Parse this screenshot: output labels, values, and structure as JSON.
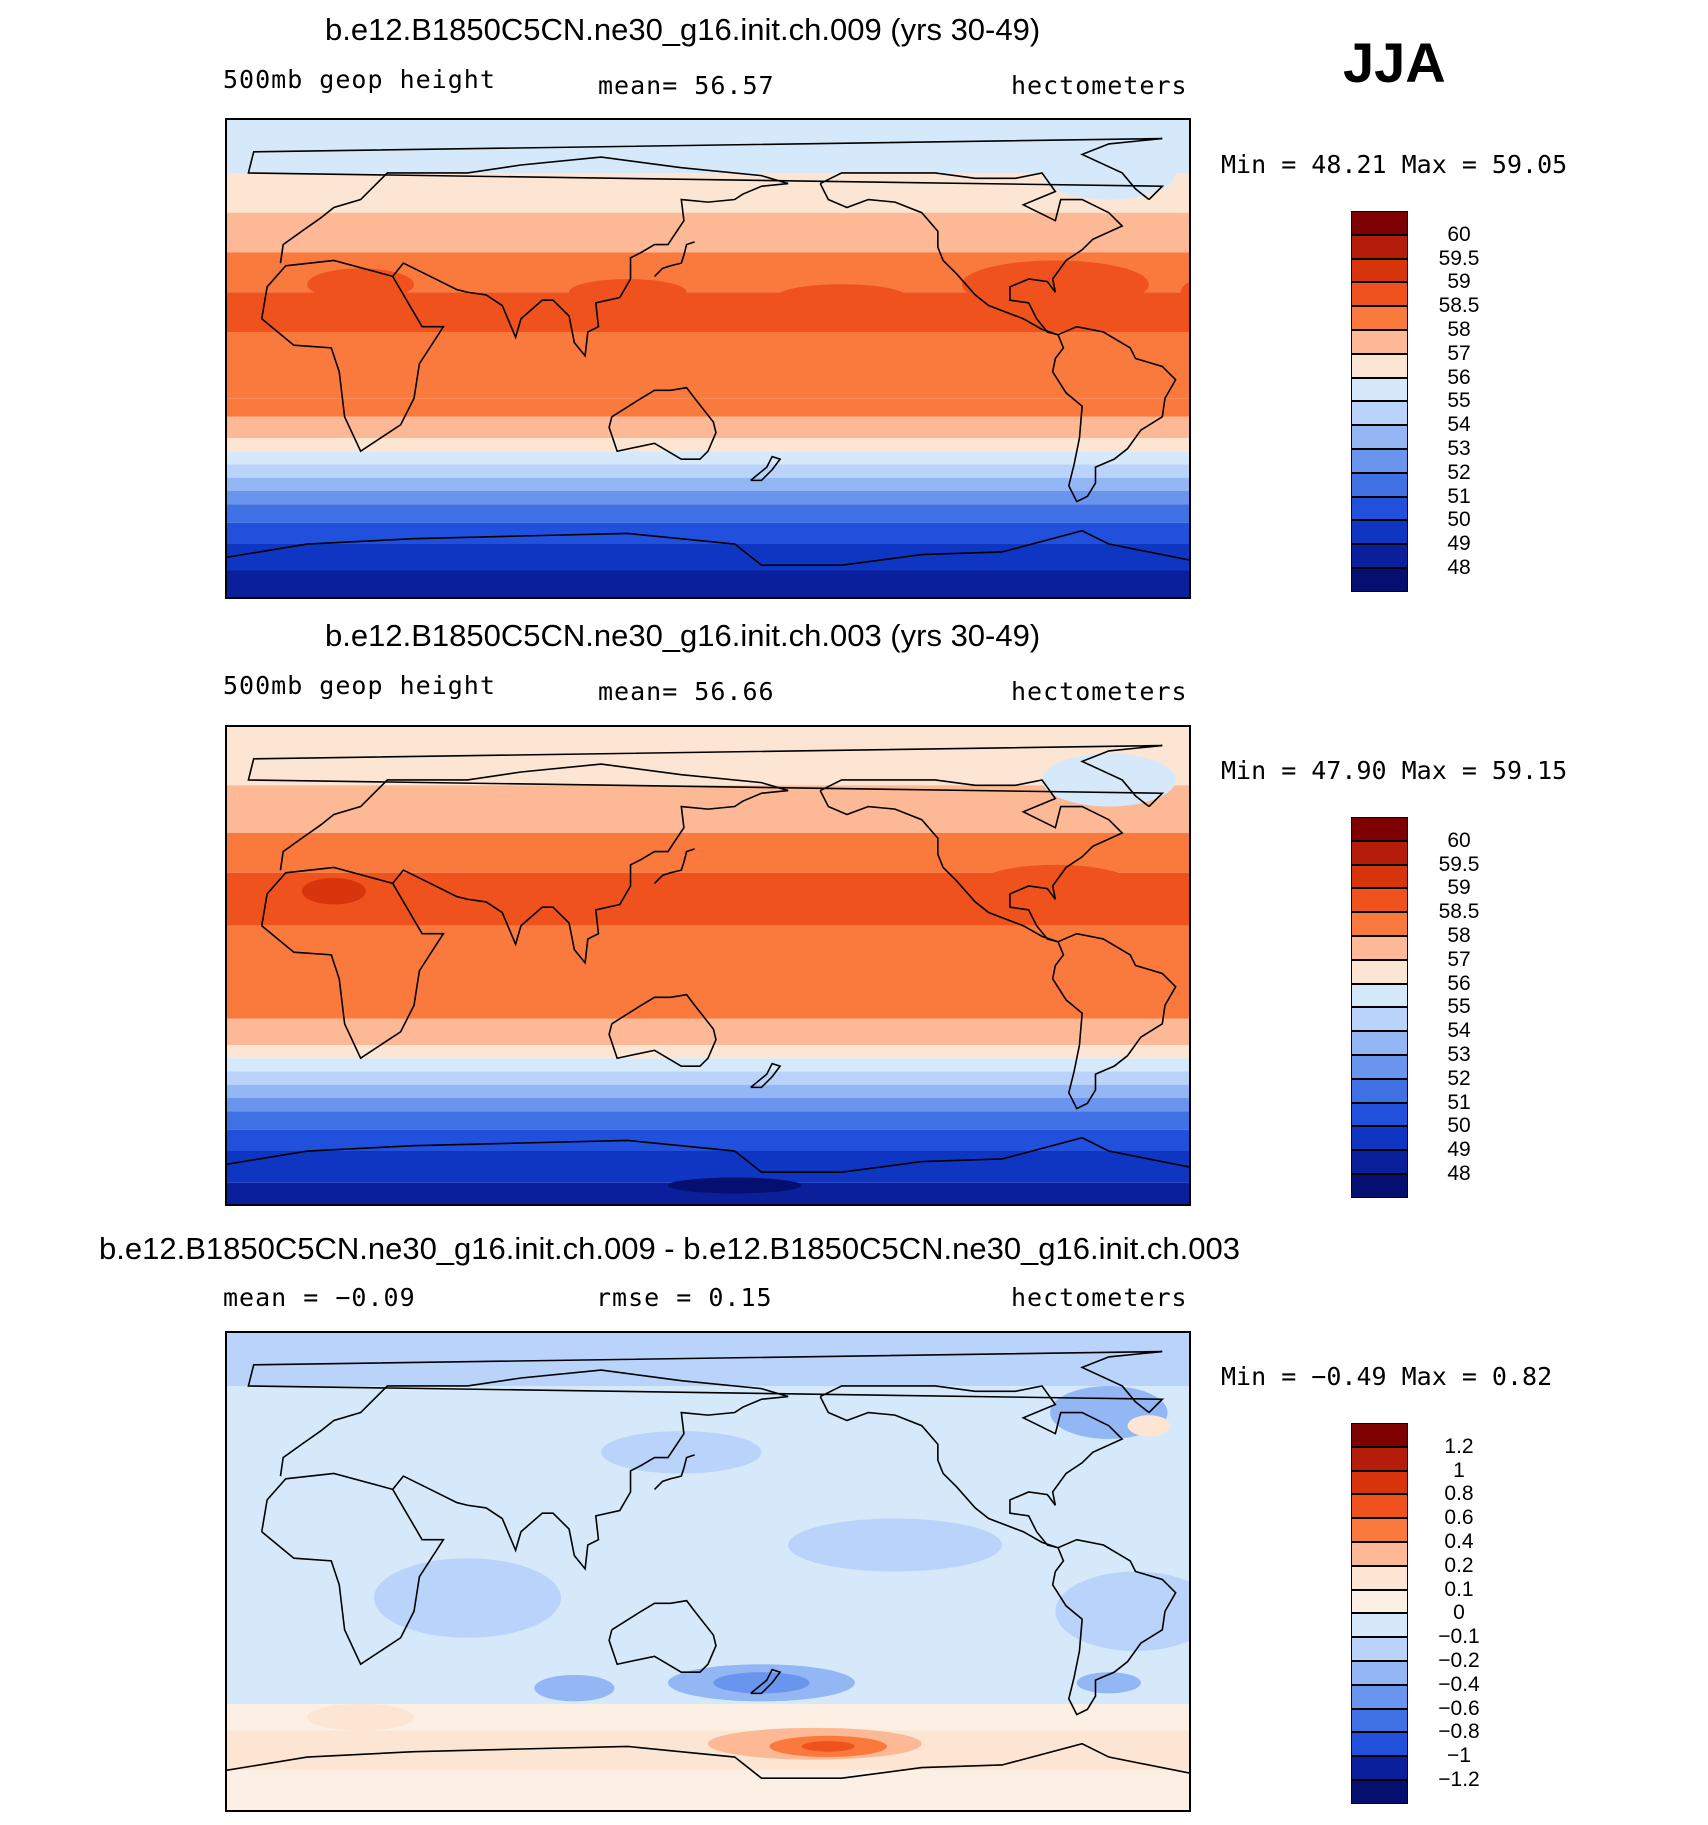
{
  "season": "JJA",
  "panels": [
    {
      "title": "b.e12.B1850C5CN.ne30_g16.init.ch.009 (yrs 30-49)",
      "field": "500mb  geop  height",
      "stat": "mean=   56.57",
      "units": "hectometers",
      "minmax": "Min  =   48.21  Max  =   59.05",
      "colorbar": {
        "labels": [
          "60",
          "59.5",
          "59",
          "58.5",
          "58",
          "57",
          "56",
          "55",
          "54",
          "53",
          "52",
          "51",
          "50",
          "49",
          "48"
        ],
        "colors": [
          "#7f0000",
          "#b51d0a",
          "#d8350d",
          "#f0521d",
          "#fa7a3e",
          "#fdb896",
          "#fce5d2",
          "#d6e9fa",
          "#b9d3fa",
          "#93b6f5",
          "#6a95ef",
          "#3f70e4",
          "#2050dc",
          "#0f36c2",
          "#0a1f9c",
          "#050f70"
        ]
      },
      "bands": [
        {
          "lat": 82,
          "color": "#d6e9fa"
        },
        {
          "lat": 70,
          "color": "#fce5d2"
        },
        {
          "lat": 55,
          "color": "#fdb896"
        },
        {
          "lat": 40,
          "color": "#fa7a3e"
        },
        {
          "lat": 25,
          "color": "#f0521d"
        },
        {
          "lat": 10,
          "color": "#fa7a3e"
        },
        {
          "lat": -15,
          "color": "#fa7a3e"
        },
        {
          "lat": -22,
          "color": "#fdb896"
        },
        {
          "lat": -30,
          "color": "#fce5d2"
        },
        {
          "lat": -35,
          "color": "#d6e9fa"
        },
        {
          "lat": -40,
          "color": "#b9d3fa"
        },
        {
          "lat": -45,
          "color": "#93b6f5"
        },
        {
          "lat": -50,
          "color": "#6a95ef"
        },
        {
          "lat": -55,
          "color": "#3f70e4"
        },
        {
          "lat": -62,
          "color": "#2050dc"
        },
        {
          "lat": -70,
          "color": "#0f36c2"
        },
        {
          "lat": -80,
          "color": "#0a1f9c"
        }
      ],
      "blobs": [
        {
          "lon": 120,
          "lat": 25,
          "rlon": 22,
          "rlat": 5,
          "color": "#f0521d"
        },
        {
          "lon": 200,
          "lat": 23,
          "rlon": 25,
          "rlat": 5,
          "color": "#f0521d"
        },
        {
          "lon": 280,
          "lat": 28,
          "rlon": 35,
          "rlat": 9,
          "color": "#f0521d"
        },
        {
          "lon": 345,
          "lat": 25,
          "rlon": 18,
          "rlat": 7,
          "color": "#f0521d"
        },
        {
          "lon": 20,
          "lat": 28,
          "rlon": 20,
          "rlat": 6,
          "color": "#f0521d"
        },
        {
          "lon": 300,
          "lat": 70,
          "rlon": 25,
          "rlat": 10,
          "color": "#d6e9fa"
        }
      ]
    },
    {
      "title": "b.e12.B1850C5CN.ne30_g16.init.ch.003 (yrs 30-49)",
      "field": "500mb  geop  height",
      "stat": "mean=   56.66",
      "units": "hectometers",
      "minmax": "Min  =   47.90  Max  =   59.15",
      "colorbar": {
        "labels": [
          "60",
          "59.5",
          "59",
          "58.5",
          "58",
          "57",
          "56",
          "55",
          "54",
          "53",
          "52",
          "51",
          "50",
          "49",
          "48"
        ],
        "colors": [
          "#7f0000",
          "#b51d0a",
          "#d8350d",
          "#f0521d",
          "#fa7a3e",
          "#fdb896",
          "#fce5d2",
          "#d6e9fa",
          "#b9d3fa",
          "#93b6f5",
          "#6a95ef",
          "#3f70e4",
          "#2050dc",
          "#0f36c2",
          "#0a1f9c",
          "#050f70"
        ]
      },
      "bands": [
        {
          "lat": 82,
          "color": "#fce5d2"
        },
        {
          "lat": 68,
          "color": "#fdb896"
        },
        {
          "lat": 50,
          "color": "#fa7a3e"
        },
        {
          "lat": 35,
          "color": "#f0521d"
        },
        {
          "lat": 15,
          "color": "#fa7a3e"
        },
        {
          "lat": -20,
          "color": "#fdb896"
        },
        {
          "lat": -30,
          "color": "#fce5d2"
        },
        {
          "lat": -35,
          "color": "#d6e9fa"
        },
        {
          "lat": -40,
          "color": "#b9d3fa"
        },
        {
          "lat": -45,
          "color": "#93b6f5"
        },
        {
          "lat": -50,
          "color": "#6a95ef"
        },
        {
          "lat": -55,
          "color": "#3f70e4"
        },
        {
          "lat": -62,
          "color": "#2050dc"
        },
        {
          "lat": -70,
          "color": "#0f36c2"
        },
        {
          "lat": -82,
          "color": "#0a1f9c"
        }
      ],
      "blobs": [
        {
          "lon": 200,
          "lat": 25,
          "rlon": 45,
          "rlat": 7,
          "color": "#f0521d"
        },
        {
          "lon": 280,
          "lat": 30,
          "rlon": 30,
          "rlat": 8,
          "color": "#f0521d"
        },
        {
          "lon": 10,
          "lat": 28,
          "rlon": 12,
          "rlat": 5,
          "color": "#d8350d"
        },
        {
          "lon": 350,
          "lat": 28,
          "rlon": 8,
          "rlat": 5,
          "color": "#d8350d"
        },
        {
          "lon": 300,
          "lat": 70,
          "rlon": 25,
          "rlat": 10,
          "color": "#d6e9fa"
        },
        {
          "lon": 160,
          "lat": -83,
          "rlon": 25,
          "rlat": 3,
          "color": "#050f70"
        }
      ]
    },
    {
      "title": "b.e12.B1850C5CN.ne30_g16.init.ch.009 - b.e12.B1850C5CN.ne30_g16.init.ch.003",
      "field": "mean  =   −0.09",
      "stat": "rmse  =    0.15",
      "units": "hectometers",
      "minmax": "Min  =   −0.49  Max  =    0.82",
      "colorbar": {
        "labels": [
          "1.2",
          "1",
          "0.8",
          "0.6",
          "0.4",
          "0.2",
          "0.1",
          "0",
          "−0.1",
          "−0.2",
          "−0.4",
          "−0.6",
          "−0.8",
          "−1",
          "−1.2"
        ],
        "colors": [
          "#7f0000",
          "#b51d0a",
          "#d8350d",
          "#f0521d",
          "#fa7a3e",
          "#fdb896",
          "#fce5d2",
          "#fcefe3",
          "#d6e9fa",
          "#b9d3fa",
          "#93b6f5",
          "#6a95ef",
          "#3f70e4",
          "#2050dc",
          "#0a1f9c",
          "#050f70"
        ]
      },
      "bands": [
        {
          "lat": 90,
          "color": "#b9d3fa"
        },
        {
          "lat": 70,
          "color": "#d6e9fa"
        },
        {
          "lat": -50,
          "color": "#fcefe3"
        },
        {
          "lat": -60,
          "color": "#fce5d2"
        },
        {
          "lat": -75,
          "color": "#fcefe3"
        }
      ],
      "blobs": [
        {
          "lon": 300,
          "lat": 60,
          "rlon": 22,
          "rlat": 10,
          "color": "#93b6f5"
        },
        {
          "lon": 140,
          "lat": 45,
          "rlon": 30,
          "rlat": 8,
          "color": "#b9d3fa"
        },
        {
          "lon": 220,
          "lat": 10,
          "rlon": 40,
          "rlat": 10,
          "color": "#b9d3fa"
        },
        {
          "lon": 60,
          "lat": -10,
          "rlon": 35,
          "rlat": 15,
          "color": "#b9d3fa"
        },
        {
          "lon": 310,
          "lat": -15,
          "rlon": 30,
          "rlat": 15,
          "color": "#b9d3fa"
        },
        {
          "lon": 170,
          "lat": -42,
          "rlon": 35,
          "rlat": 7,
          "color": "#93b6f5"
        },
        {
          "lon": 170,
          "lat": -42,
          "rlon": 18,
          "rlat": 4,
          "color": "#6a95ef"
        },
        {
          "lon": 100,
          "lat": -44,
          "rlon": 15,
          "rlat": 5,
          "color": "#93b6f5"
        },
        {
          "lon": 300,
          "lat": -42,
          "rlon": 12,
          "rlat": 4,
          "color": "#93b6f5"
        },
        {
          "lon": 190,
          "lat": -65,
          "rlon": 40,
          "rlat": 6,
          "color": "#fdb896"
        },
        {
          "lon": 195,
          "lat": -66,
          "rlon": 22,
          "rlat": 4,
          "color": "#fa7a3e"
        },
        {
          "lon": 195,
          "lat": -66,
          "rlon": 10,
          "rlat": 2,
          "color": "#f0521d"
        },
        {
          "lon": 20,
          "lat": -55,
          "rlon": 20,
          "rlat": 5,
          "color": "#fce5d2"
        },
        {
          "lon": 315,
          "lat": 55,
          "rlon": 8,
          "rlat": 4,
          "color": "#fce5d2"
        }
      ]
    }
  ]
}
